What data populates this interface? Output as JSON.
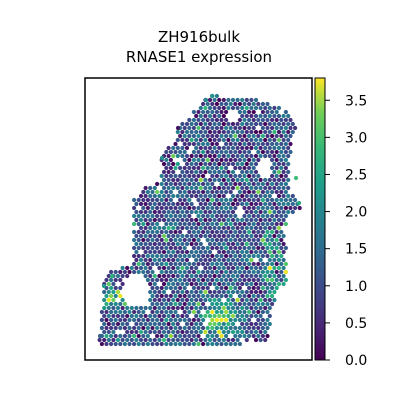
{
  "chart_data": {
    "type": "scatter",
    "subtype": "spatial-spot-map",
    "title": "ZH916bulk",
    "subtitle": "RNASE1 expression",
    "xlabel": "",
    "ylabel": "",
    "x_ticks": "none",
    "y_ticks": "none",
    "grid": false,
    "legend": "none",
    "colormap": "viridis",
    "colorbar": {
      "placement": "right",
      "range": [
        0.0,
        3.8
      ],
      "ticks": [
        0.0,
        0.5,
        1.0,
        1.5,
        2.0,
        2.5,
        3.0,
        3.5
      ],
      "tick_labels": [
        "0.0",
        "0.5",
        "1.0",
        "1.5",
        "2.0",
        "2.5",
        "3.0",
        "3.5"
      ]
    },
    "value_summary": {
      "typical_range": [
        0.5,
        1.5
      ],
      "max_observed": 3.7,
      "high_regions": [
        "bottom-center",
        "lower-left edge",
        "upper-right edge"
      ]
    },
    "colors": {
      "viridis_low": "#440154",
      "viridis_mid": "#21918c",
      "viridis_high": "#fde725"
    }
  }
}
